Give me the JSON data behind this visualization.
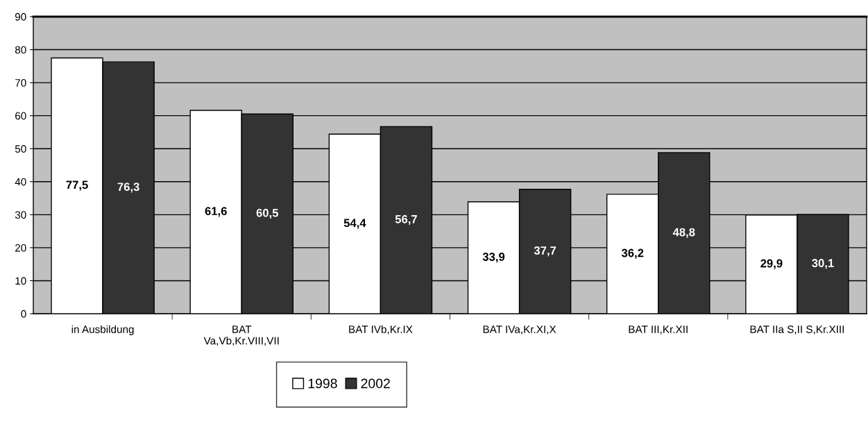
{
  "chart_data": {
    "type": "bar",
    "categories": [
      "in Ausbildung",
      "BAT\nVa,Vb,Kr.VIII,VII",
      "BAT IVb,Kr.IX",
      "BAT IVa,Kr.XI,X",
      "BAT III,Kr.XII",
      "BAT IIa S,II S,Kr.XIII"
    ],
    "series": [
      {
        "name": "1998",
        "color": "#ffffff",
        "values": [
          77.5,
          61.6,
          54.4,
          33.9,
          36.2,
          29.9
        ],
        "value_labels": [
          "77,5",
          "61,6",
          "54,4",
          "33,9",
          "36,2",
          "29,9"
        ]
      },
      {
        "name": "2002",
        "color": "#333333",
        "values": [
          76.3,
          60.5,
          56.7,
          37.7,
          48.8,
          30.1
        ],
        "value_labels": [
          "76,3",
          "60,5",
          "56,7",
          "37,7",
          "48,8",
          "30,1"
        ]
      }
    ],
    "ylim": [
      0,
      90
    ],
    "yticks": [
      0,
      10,
      20,
      30,
      40,
      50,
      60,
      70,
      80,
      90
    ],
    "grid": "y",
    "legend": "bottom"
  }
}
